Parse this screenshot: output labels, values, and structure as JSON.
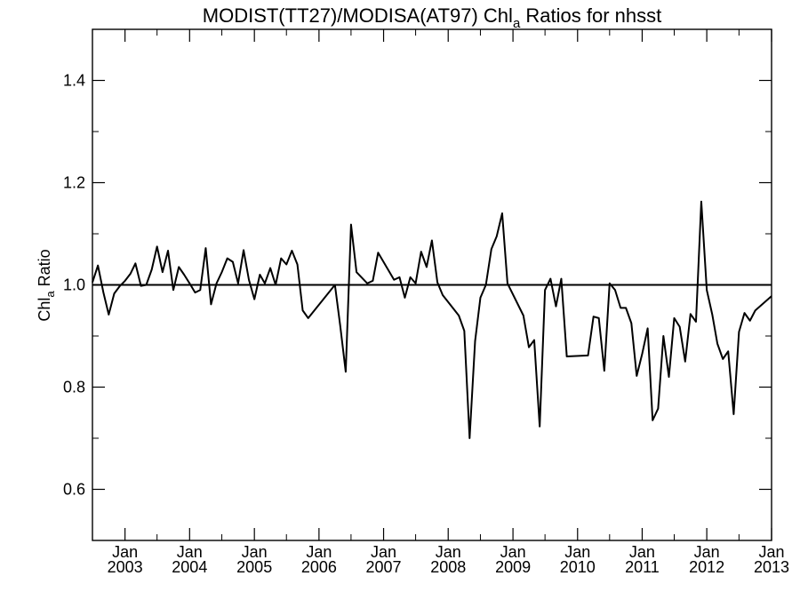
{
  "chart_data": {
    "type": "line",
    "title": {
      "prefix": "MODIST(TT27)/MODISA(AT97)  Chl",
      "subscript": "a",
      "suffix": " Ratios for nhsst"
    },
    "ylabel": {
      "prefix": "Chl",
      "subscript": "a",
      "suffix": " Ratio"
    },
    "xlim": [
      "2002-07-01",
      "2013-01-01"
    ],
    "ylim": [
      0.5,
      1.5
    ],
    "yticks": [
      0.6,
      0.8,
      1.0,
      1.2,
      1.4
    ],
    "ytick_labels": [
      "0.6",
      "0.8",
      "1.0",
      "1.2",
      "1.4"
    ],
    "xticks": [
      {
        "date": "2003-01-01",
        "month": "Jan",
        "year": "2003"
      },
      {
        "date": "2004-01-01",
        "month": "Jan",
        "year": "2004"
      },
      {
        "date": "2005-01-01",
        "month": "Jan",
        "year": "2005"
      },
      {
        "date": "2006-01-01",
        "month": "Jan",
        "year": "2006"
      },
      {
        "date": "2007-01-01",
        "month": "Jan",
        "year": "2007"
      },
      {
        "date": "2008-01-01",
        "month": "Jan",
        "year": "2008"
      },
      {
        "date": "2009-01-01",
        "month": "Jan",
        "year": "2009"
      },
      {
        "date": "2010-01-01",
        "month": "Jan",
        "year": "2010"
      },
      {
        "date": "2011-01-01",
        "month": "Jan",
        "year": "2011"
      },
      {
        "date": "2012-01-01",
        "month": "Jan",
        "year": "2012"
      },
      {
        "date": "2013-01-01",
        "month": "Jan",
        "year": "2013"
      }
    ],
    "reference_line": 1.0,
    "grid": false,
    "series": [
      {
        "color": "#000000",
        "points": [
          [
            "2002-07-01",
            1.005
          ],
          [
            "2002-08-01",
            1.038
          ],
          [
            "2002-09-01",
            0.985
          ],
          [
            "2002-10-01",
            0.942
          ],
          [
            "2002-11-01",
            0.983
          ],
          [
            "2002-12-01",
            0.997
          ],
          [
            "2003-01-01",
            1.008
          ],
          [
            "2003-02-01",
            1.022
          ],
          [
            "2003-03-01",
            1.042
          ],
          [
            "2003-04-01",
            0.998
          ],
          [
            "2003-05-01",
            1.0
          ],
          [
            "2003-06-01",
            1.03
          ],
          [
            "2003-07-01",
            1.075
          ],
          [
            "2003-08-01",
            1.025
          ],
          [
            "2003-09-01",
            1.067
          ],
          [
            "2003-10-01",
            0.99
          ],
          [
            "2003-11-01",
            1.035
          ],
          [
            "2003-12-01",
            1.02
          ],
          [
            "2004-01-01",
            1.003
          ],
          [
            "2004-02-01",
            0.985
          ],
          [
            "2004-03-01",
            0.99
          ],
          [
            "2004-04-01",
            1.072
          ],
          [
            "2004-05-01",
            0.962
          ],
          [
            "2004-06-01",
            1.003
          ],
          [
            "2004-07-01",
            1.025
          ],
          [
            "2004-08-01",
            1.052
          ],
          [
            "2004-09-01",
            1.045
          ],
          [
            "2004-10-01",
            1.003
          ],
          [
            "2004-11-01",
            1.068
          ],
          [
            "2004-12-01",
            1.01
          ],
          [
            "2005-01-01",
            0.972
          ],
          [
            "2005-02-01",
            1.02
          ],
          [
            "2005-03-01",
            1.003
          ],
          [
            "2005-04-01",
            1.033
          ],
          [
            "2005-05-01",
            1.0
          ],
          [
            "2005-06-01",
            1.052
          ],
          [
            "2005-07-01",
            1.04
          ],
          [
            "2005-08-01",
            1.067
          ],
          [
            "2005-09-01",
            1.04
          ],
          [
            "2005-10-01",
            0.95
          ],
          [
            "2005-11-01",
            0.935
          ],
          [
            "2006-04-01",
            1.0
          ],
          [
            "2006-05-01",
            0.92
          ],
          [
            "2006-06-01",
            0.83
          ],
          [
            "2006-07-01",
            1.118
          ],
          [
            "2006-08-01",
            1.025
          ],
          [
            "2006-10-01",
            1.003
          ],
          [
            "2006-11-01",
            1.008
          ],
          [
            "2006-12-01",
            1.063
          ],
          [
            "2007-03-01",
            1.01
          ],
          [
            "2007-04-01",
            1.015
          ],
          [
            "2007-05-01",
            0.975
          ],
          [
            "2007-06-01",
            1.015
          ],
          [
            "2007-07-01",
            1.003
          ],
          [
            "2007-08-01",
            1.065
          ],
          [
            "2007-09-01",
            1.035
          ],
          [
            "2007-10-01",
            1.087
          ],
          [
            "2007-11-01",
            1.005
          ],
          [
            "2007-12-01",
            0.98
          ],
          [
            "2008-03-01",
            0.94
          ],
          [
            "2008-04-01",
            0.91
          ],
          [
            "2008-05-01",
            0.7
          ],
          [
            "2008-06-01",
            0.89
          ],
          [
            "2008-07-01",
            0.975
          ],
          [
            "2008-08-01",
            1.0
          ],
          [
            "2008-09-01",
            1.07
          ],
          [
            "2008-10-01",
            1.095
          ],
          [
            "2008-11-01",
            1.14
          ],
          [
            "2008-12-01",
            1.003
          ],
          [
            "2009-03-01",
            0.94
          ],
          [
            "2009-04-01",
            0.878
          ],
          [
            "2009-05-01",
            0.892
          ],
          [
            "2009-06-01",
            0.723
          ],
          [
            "2009-07-01",
            0.99
          ],
          [
            "2009-08-01",
            1.012
          ],
          [
            "2009-09-01",
            0.958
          ],
          [
            "2009-10-01",
            1.012
          ],
          [
            "2009-11-01",
            0.86
          ],
          [
            "2010-03-01",
            0.862
          ],
          [
            "2010-04-01",
            0.938
          ],
          [
            "2010-05-01",
            0.935
          ],
          [
            "2010-06-01",
            0.832
          ],
          [
            "2010-07-01",
            1.003
          ],
          [
            "2010-08-01",
            0.99
          ],
          [
            "2010-09-01",
            0.955
          ],
          [
            "2010-10-01",
            0.955
          ],
          [
            "2010-11-01",
            0.925
          ],
          [
            "2010-12-01",
            0.822
          ],
          [
            "2011-01-01",
            0.865
          ],
          [
            "2011-02-01",
            0.915
          ],
          [
            "2011-03-01",
            0.735
          ],
          [
            "2011-04-01",
            0.758
          ],
          [
            "2011-05-01",
            0.9
          ],
          [
            "2011-06-01",
            0.82
          ],
          [
            "2011-07-01",
            0.935
          ],
          [
            "2011-08-01",
            0.918
          ],
          [
            "2011-09-01",
            0.85
          ],
          [
            "2011-10-01",
            0.943
          ],
          [
            "2011-11-01",
            0.928
          ],
          [
            "2011-12-01",
            1.163
          ],
          [
            "2012-01-01",
            0.99
          ],
          [
            "2012-02-01",
            0.942
          ],
          [
            "2012-03-01",
            0.885
          ],
          [
            "2012-04-01",
            0.855
          ],
          [
            "2012-05-01",
            0.87
          ],
          [
            "2012-06-01",
            0.747
          ],
          [
            "2012-07-01",
            0.908
          ],
          [
            "2012-08-01",
            0.945
          ],
          [
            "2012-09-01",
            0.93
          ],
          [
            "2012-10-01",
            0.95
          ],
          [
            "2013-01-01",
            0.978
          ]
        ]
      }
    ]
  }
}
